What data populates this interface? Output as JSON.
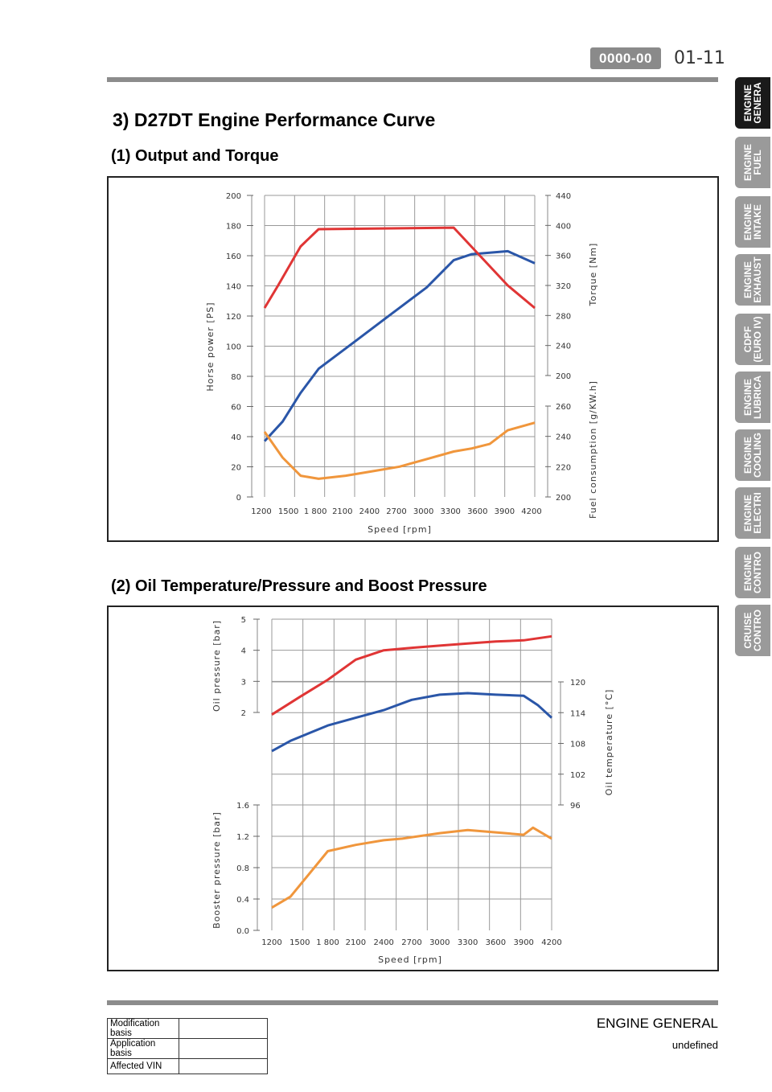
{
  "header": {
    "code": "0000-00",
    "page_number": "01-11"
  },
  "section_title": "3) D27DT Engine Performance Curve",
  "sidebar": {
    "tabs": [
      {
        "label": "ENGINE\nGENERA",
        "active": true
      },
      {
        "label": "ENGINE\nFUEL",
        "active": false
      },
      {
        "label": "ENGINE\nINTAKE",
        "active": false
      },
      {
        "label": "ENGINE\nEXHAUST",
        "active": false
      },
      {
        "label": "CDPF\n(EURO IV)",
        "active": false
      },
      {
        "label": "ENGINE\nLUBRICA",
        "active": false
      },
      {
        "label": "ENGINE\nCOOLING",
        "active": false
      },
      {
        "label": "ENGINE\nELECTRI",
        "active": false
      },
      {
        "label": "ENGINE\nCONTRO",
        "active": false
      },
      {
        "label": "CRUISE\nCONTRO",
        "active": false
      }
    ]
  },
  "charts": {
    "output": {
      "subtitle": "(1) Output and Torque",
      "x_label": "Speed [rpm]",
      "x_ticks": [
        "1200",
        "1500",
        "1 800",
        "2100",
        "2400",
        "2700",
        "3000",
        "3300",
        "3600",
        "3900",
        "4200"
      ],
      "left_label": "Horse power [PS]",
      "left_ticks": [
        "0",
        "20",
        "40",
        "60",
        "80",
        "100",
        "120",
        "140",
        "160",
        "180",
        "200"
      ],
      "torque_label": "Torque [Nm]",
      "torque_ticks": [
        "200",
        "240",
        "280",
        "320",
        "360",
        "400",
        "440"
      ],
      "fuel_label": "Fuel consumption [g/KW.h]",
      "fuel_ticks": [
        "200",
        "220",
        "240",
        "260"
      ]
    },
    "oil": {
      "subtitle": "(2) Oil Temperature/Pressure and Boost Pressure",
      "x_label": "Speed [rpm]",
      "x_ticks": [
        "1200",
        "1500",
        "1 800",
        "2100",
        "2400",
        "2700",
        "3000",
        "3300",
        "3600",
        "3900",
        "4200"
      ],
      "oil_pressure_label": "Oil pressure [bar]",
      "oil_pressure_ticks": [
        "2",
        "3",
        "4",
        "5"
      ],
      "boost_label": "Booster pressure [bar]",
      "boost_ticks": [
        "0.0",
        "0.4",
        "0.8",
        "1.2",
        "1.6"
      ],
      "oil_temp_label": "Oil temperature [°C]",
      "oil_temp_ticks": [
        "96",
        "102",
        "108",
        "114",
        "120"
      ]
    }
  },
  "chart_data": [
    {
      "type": "line",
      "title": "(1) Output and Torque",
      "xlabel": "Speed [rpm]",
      "xlim": [
        1200,
        4200
      ],
      "series": [
        {
          "axis": "Horse power [PS]",
          "color": "#2a56a8",
          "x": [
            1200,
            1400,
            1600,
            1800,
            2200,
            2600,
            3000,
            3300,
            3500,
            3900,
            4200
          ],
          "y": [
            37,
            50,
            69,
            85,
            103,
            121,
            139,
            157,
            161,
            163,
            155
          ]
        },
        {
          "axis": "Torque [Nm]",
          "color": "#e03535",
          "x": [
            1200,
            1350,
            1600,
            1800,
            3300,
            3900,
            4200
          ],
          "y": [
            290,
            320,
            372,
            395,
            397,
            320,
            290
          ]
        },
        {
          "axis": "Fuel consumption [g/KW.h]",
          "color": "#f0963c",
          "x": [
            1200,
            1400,
            1600,
            1800,
            2100,
            2400,
            2700,
            3000,
            3300,
            3500,
            3700,
            3900,
            4200
          ],
          "y": [
            243,
            226,
            214,
            212,
            214,
            217,
            220,
            225,
            230,
            232,
            235,
            244,
            249
          ]
        }
      ]
    },
    {
      "type": "line",
      "title": "(2) Oil Temperature/Pressure and Boost Pressure",
      "xlabel": "Speed [rpm]",
      "xlim": [
        1200,
        4200
      ],
      "series": [
        {
          "axis": "Oil pressure [bar]",
          "color": "#e03535",
          "x": [
            1200,
            1500,
            1800,
            2100,
            2400,
            2700,
            3000,
            3300,
            3600,
            3900,
            4200
          ],
          "y": [
            1.93,
            2.5,
            3.05,
            3.7,
            4.0,
            4.08,
            4.15,
            4.22,
            4.28,
            4.32,
            4.45
          ]
        },
        {
          "axis": "Oil temperature [°C]",
          "color": "#2a56a8",
          "x": [
            1200,
            1400,
            1800,
            2100,
            2400,
            2700,
            3000,
            3300,
            3600,
            3900,
            4050,
            4200
          ],
          "y": [
            106.5,
            108.5,
            111.5,
            113,
            114.5,
            116.5,
            117.5,
            117.8,
            117.5,
            117.3,
            115.5,
            113
          ]
        },
        {
          "axis": "Booster pressure [bar]",
          "color": "#f0963c",
          "x": [
            1200,
            1400,
            1800,
            2100,
            2400,
            2600,
            3000,
            3300,
            3600,
            3900,
            4000,
            4200
          ],
          "y": [
            0.29,
            0.43,
            1.01,
            1.09,
            1.15,
            1.17,
            1.24,
            1.28,
            1.25,
            1.22,
            1.31,
            1.17
          ]
        }
      ]
    }
  ],
  "footer": {
    "title": "ENGINE GENERAL",
    "subtitle": "undefined",
    "table": [
      {
        "label": "Modification basis",
        "value": ""
      },
      {
        "label": "Application basis",
        "value": ""
      },
      {
        "label": "Affected VIN",
        "value": ""
      }
    ]
  }
}
